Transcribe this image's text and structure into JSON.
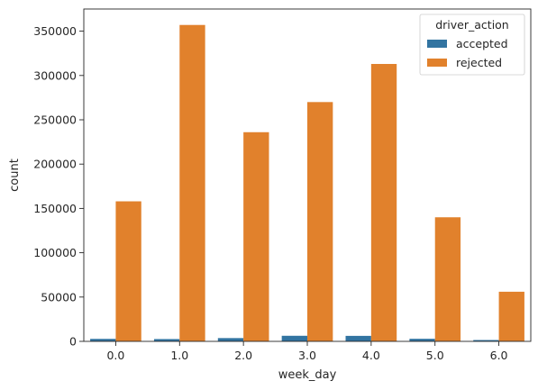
{
  "chart_data": {
    "type": "bar",
    "title": "",
    "xlabel": "week_day",
    "ylabel": "count",
    "categories": [
      "0.0",
      "1.0",
      "2.0",
      "3.0",
      "4.0",
      "5.0",
      "6.0"
    ],
    "series": [
      {
        "name": "accepted",
        "color": "#3274a1",
        "values": [
          2800,
          2600,
          3700,
          6300,
          6200,
          2900,
          1500
        ]
      },
      {
        "name": "rejected",
        "color": "#e1812c",
        "values": [
          158000,
          357000,
          236000,
          270000,
          313000,
          140000,
          56000
        ]
      }
    ],
    "ylim": [
      0,
      375000
    ],
    "yticks": [
      0,
      50000,
      100000,
      150000,
      200000,
      250000,
      300000,
      350000
    ],
    "legend": {
      "title": "driver_action",
      "position": "top-right"
    },
    "grid": false
  }
}
